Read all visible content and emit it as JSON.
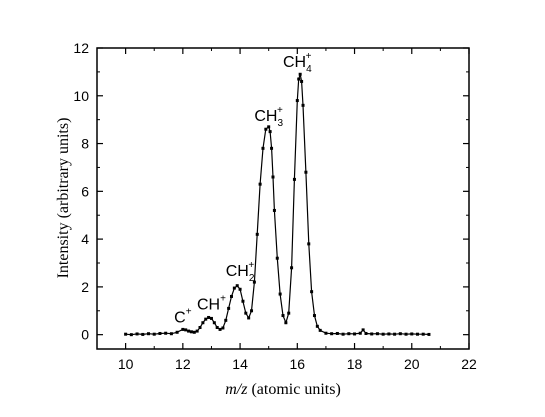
{
  "chart_data": {
    "type": "line",
    "title": "",
    "xlabel": {
      "prefix": "m/z",
      "rest": " (atomic units)"
    },
    "ylabel": "Intensity (arbitrary units)",
    "xlim": [
      9,
      22
    ],
    "ylim": [
      -0.6,
      12
    ],
    "xticks": [
      10,
      12,
      14,
      16,
      18,
      20,
      22
    ],
    "yticks": [
      0,
      2,
      4,
      6,
      8,
      10,
      12
    ],
    "grid": false,
    "legend": "none",
    "series": [
      {
        "name": "",
        "marker": "square-dot",
        "x": [
          10.0,
          10.2,
          10.4,
          10.6,
          10.8,
          11.0,
          11.2,
          11.4,
          11.6,
          11.8,
          12.0,
          12.1,
          12.2,
          12.3,
          12.4,
          12.5,
          12.6,
          12.7,
          12.8,
          12.9,
          13.0,
          13.1,
          13.2,
          13.3,
          13.4,
          13.5,
          13.6,
          13.7,
          13.8,
          13.9,
          14.0,
          14.1,
          14.2,
          14.3,
          14.4,
          14.5,
          14.6,
          14.7,
          14.8,
          14.9,
          15.0,
          15.05,
          15.1,
          15.15,
          15.2,
          15.3,
          15.4,
          15.5,
          15.6,
          15.7,
          15.8,
          15.9,
          16.0,
          16.05,
          16.1,
          16.15,
          16.2,
          16.3,
          16.4,
          16.5,
          16.6,
          16.7,
          16.8,
          17.0,
          17.2,
          17.4,
          17.6,
          17.8,
          18.0,
          18.2,
          18.3,
          18.4,
          18.6,
          18.8,
          19.0,
          19.2,
          19.4,
          19.6,
          19.8,
          20.0,
          20.2,
          20.4,
          20.6
        ],
        "y": [
          0.02,
          0.0,
          0.03,
          0.01,
          0.04,
          0.02,
          0.05,
          0.06,
          0.04,
          0.1,
          0.22,
          0.2,
          0.15,
          0.12,
          0.1,
          0.15,
          0.3,
          0.5,
          0.65,
          0.72,
          0.68,
          0.5,
          0.3,
          0.22,
          0.28,
          0.6,
          1.1,
          1.6,
          1.95,
          2.05,
          1.9,
          1.4,
          0.9,
          0.7,
          1.0,
          2.2,
          4.2,
          6.3,
          7.8,
          8.6,
          8.7,
          8.5,
          7.8,
          6.6,
          5.2,
          3.2,
          1.7,
          0.8,
          0.5,
          0.9,
          2.8,
          6.5,
          9.8,
          10.7,
          10.9,
          10.6,
          9.6,
          6.8,
          3.8,
          1.8,
          0.8,
          0.35,
          0.18,
          0.06,
          0.04,
          0.05,
          0.02,
          0.04,
          0.03,
          0.06,
          0.2,
          0.05,
          0.03,
          0.04,
          0.02,
          0.03,
          0.02,
          0.04,
          0.02,
          0.03,
          0.02,
          0.02,
          0.01
        ]
      }
    ],
    "annotations": [
      {
        "text": "C",
        "sup": "+",
        "sub": "",
        "x": 12.0,
        "y": 0.5
      },
      {
        "text": "CH",
        "sup": "+",
        "sub": "",
        "x": 13.0,
        "y": 1.05
      },
      {
        "text": "CH",
        "sup": "+",
        "sub": "2",
        "x": 14.0,
        "y": 2.45
      },
      {
        "text": "CH",
        "sup": "+",
        "sub": "3",
        "x": 15.0,
        "y": 8.95
      },
      {
        "text": "CH",
        "sup": "+",
        "sub": "4",
        "x": 16.0,
        "y": 11.2
      }
    ]
  }
}
